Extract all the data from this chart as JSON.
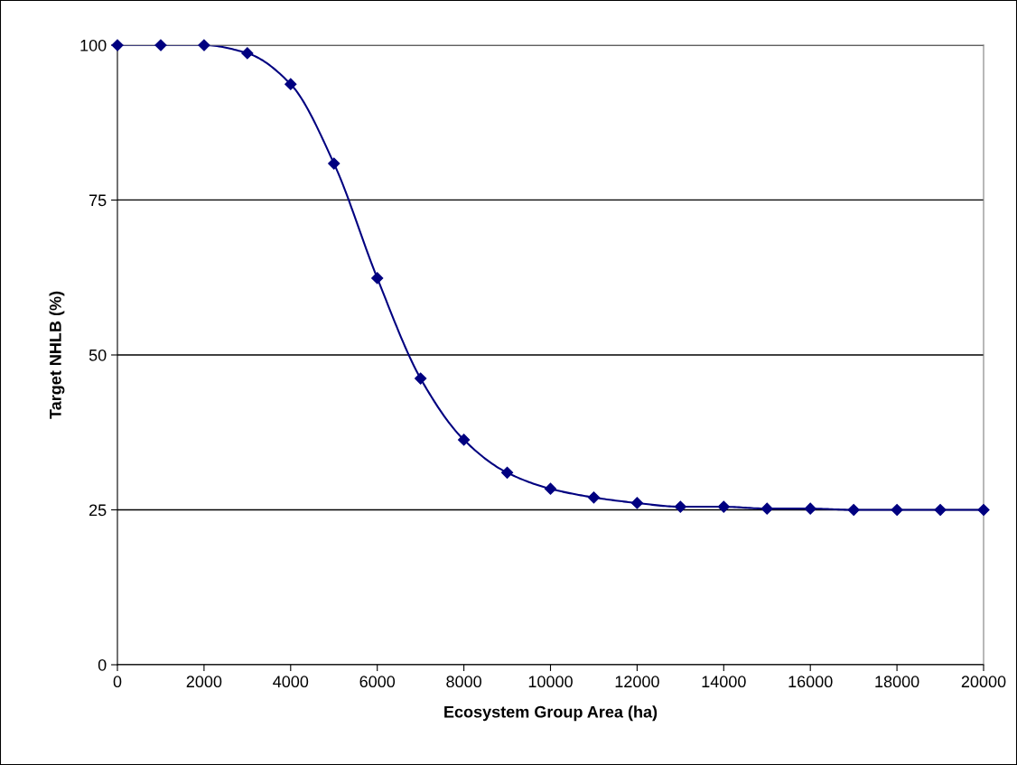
{
  "chart_data": {
    "type": "line",
    "xlabel": "Ecosystem Group Area (ha)",
    "ylabel": "Target NHLB (%)",
    "x": [
      0,
      1000,
      2000,
      3000,
      4000,
      5000,
      6000,
      7000,
      8000,
      9000,
      10000,
      11000,
      12000,
      13000,
      14000,
      15000,
      16000,
      17000,
      18000,
      19000,
      20000
    ],
    "series": [
      {
        "color": "#000080",
        "values": [
          100,
          100,
          100,
          98.7,
          93.7,
          80.9,
          62.4,
          46.2,
          36.3,
          31.0,
          28.4,
          27.0,
          26.1,
          25.5,
          25.5,
          25.2,
          25.2,
          25.0,
          25.0,
          25.0,
          25.0
        ]
      }
    ],
    "xlim": [
      0,
      20000
    ],
    "xticks": [
      0,
      2000,
      4000,
      6000,
      8000,
      10000,
      12000,
      14000,
      16000,
      18000,
      20000
    ],
    "ylim": [
      0,
      100
    ],
    "yticks": [
      0,
      25,
      50,
      75,
      100
    ],
    "grid": "y",
    "marker": "diamond",
    "line_style": "solid"
  }
}
